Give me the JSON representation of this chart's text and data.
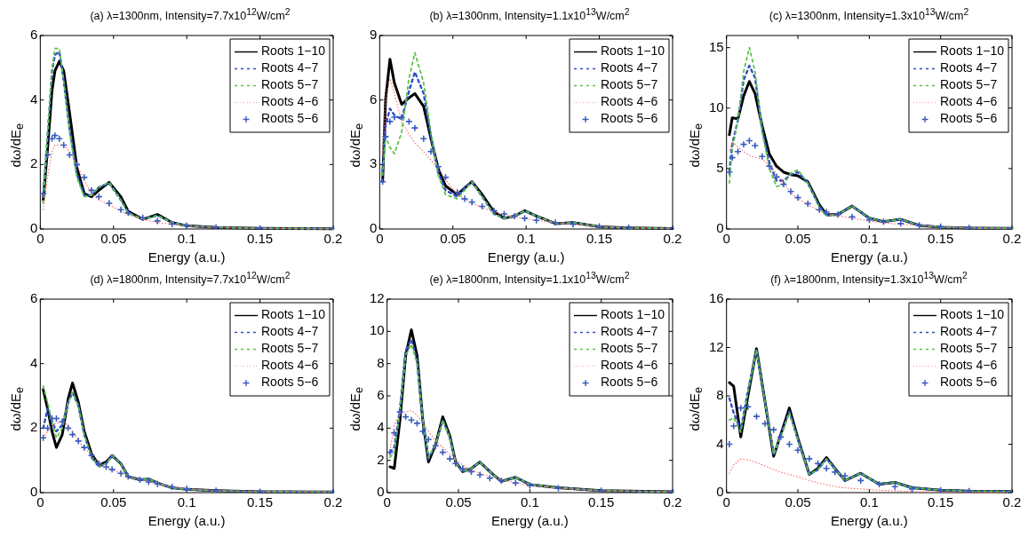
{
  "chart_data": [
    {
      "type": "line",
      "title": "(a) λ=1300nm, Intensity=7.7x10$^{12}$W/cm$^{2}$",
      "xlabel": "Energy (a.u.)",
      "ylabel": "dω/dE$_{e}$",
      "xlim": [
        0,
        0.2
      ],
      "xticks": [
        0,
        0.05,
        0.1,
        0.15,
        0.2
      ],
      "ylim": [
        0,
        6
      ],
      "yticks": [
        0,
        2,
        4,
        6
      ],
      "grid": false,
      "legend": "top right",
      "marker": "none",
      "x": [
        0.002,
        0.005,
        0.008,
        0.01,
        0.013,
        0.016,
        0.02,
        0.025,
        0.03,
        0.035,
        0.04,
        0.047,
        0.055,
        0.06,
        0.07,
        0.08,
        0.09,
        0.1,
        0.12,
        0.15,
        0.2
      ],
      "series": [
        {
          "name": "Roots 1−10",
          "color": "#000000",
          "line_style": "solid",
          "values": [
            0.9,
            2.5,
            4.3,
            4.9,
            5.2,
            4.9,
            3.6,
            1.9,
            1.1,
            1.0,
            1.2,
            1.45,
            1.0,
            0.55,
            0.3,
            0.45,
            0.2,
            0.1,
            0.05,
            0.02,
            0.01
          ]
        },
        {
          "name": "Roots 4−7",
          "color": "#2e4fc4",
          "line_style": "dashed",
          "values": [
            1.0,
            2.9,
            4.9,
            5.4,
            5.5,
            4.6,
            3.1,
            1.7,
            1.05,
            1.05,
            1.3,
            1.42,
            0.9,
            0.5,
            0.3,
            0.42,
            0.2,
            0.1,
            0.05,
            0.02,
            0.01
          ]
        },
        {
          "name": "Roots 5−7",
          "color": "#5cc24a",
          "line_style": "dashed",
          "values": [
            0.8,
            3.0,
            5.0,
            5.6,
            5.6,
            4.6,
            3.0,
            1.6,
            1.0,
            1.05,
            1.3,
            1.45,
            0.9,
            0.5,
            0.3,
            0.42,
            0.2,
            0.1,
            0.05,
            0.02,
            0.01
          ]
        },
        {
          "name": "Roots 4−6",
          "color": "#ff6b6b",
          "line_style": "dotted",
          "values": [
            0.6,
            1.6,
            2.4,
            2.6,
            2.6,
            2.6,
            2.4,
            2.0,
            1.5,
            1.1,
            0.9,
            0.75,
            0.55,
            0.45,
            0.3,
            0.2,
            0.15,
            0.1,
            0.05,
            0.02,
            0.01
          ]
        },
        {
          "name": "Roots 5−6",
          "color": "#3a5cc0",
          "type": "scatter",
          "marker": "cross",
          "values": [
            1.1,
            2.3,
            2.8,
            2.9,
            2.8,
            2.6,
            2.3,
            2.0,
            1.6,
            1.2,
            1.0,
            0.8,
            0.6,
            0.5,
            0.35,
            0.25,
            0.15,
            0.1,
            0.05,
            0.02,
            0.01
          ]
        }
      ]
    },
    {
      "type": "line",
      "title": "(b) λ=1300nm, Intensity=1.1x10$^{13}$W/cm$^{2}$",
      "xlabel": "Energy (a.u.)",
      "ylabel": "dω/dE$_{e}$",
      "xlim": [
        0,
        0.2
      ],
      "xticks": [
        0,
        0.05,
        0.1,
        0.15,
        0.2
      ],
      "ylim": [
        0,
        9
      ],
      "yticks": [
        0,
        3,
        6,
        9
      ],
      "grid": false,
      "legend": "top right",
      "marker": "none",
      "x": [
        0.002,
        0.004,
        0.007,
        0.01,
        0.015,
        0.02,
        0.024,
        0.03,
        0.035,
        0.04,
        0.045,
        0.053,
        0.058,
        0.063,
        0.07,
        0.078,
        0.085,
        0.092,
        0.099,
        0.107,
        0.12,
        0.132,
        0.15,
        0.17,
        0.2
      ],
      "series": [
        {
          "name": "Roots 1−10",
          "color": "#000000",
          "line_style": "solid",
          "values": [
            2.2,
            6.0,
            7.9,
            6.8,
            5.8,
            6.1,
            6.3,
            5.7,
            4.2,
            2.8,
            2.0,
            1.6,
            1.9,
            2.2,
            1.6,
            0.8,
            0.5,
            0.6,
            0.85,
            0.6,
            0.25,
            0.3,
            0.1,
            0.05,
            0.02
          ]
        },
        {
          "name": "Roots 4−7",
          "color": "#2e4fc4",
          "line_style": "dashed",
          "values": [
            2.7,
            4.8,
            5.6,
            5.3,
            5.1,
            6.4,
            7.3,
            6.3,
            4.3,
            2.6,
            1.8,
            1.5,
            1.9,
            2.2,
            1.5,
            0.7,
            0.5,
            0.6,
            0.85,
            0.6,
            0.25,
            0.3,
            0.1,
            0.05,
            0.02
          ]
        },
        {
          "name": "Roots 5−7",
          "color": "#5cc24a",
          "line_style": "dashed",
          "values": [
            2.5,
            4.3,
            3.8,
            3.5,
            4.5,
            7.0,
            8.2,
            6.8,
            4.5,
            2.5,
            1.6,
            1.4,
            1.8,
            2.2,
            1.5,
            0.7,
            0.5,
            0.6,
            0.85,
            0.6,
            0.25,
            0.3,
            0.1,
            0.05,
            0.02
          ]
        },
        {
          "name": "Roots 4−6",
          "color": "#ff6b6b",
          "line_style": "dotted",
          "values": [
            3.5,
            6.0,
            7.0,
            6.3,
            5.0,
            4.4,
            4.0,
            3.6,
            3.2,
            2.8,
            2.3,
            1.6,
            1.4,
            1.2,
            1.0,
            0.8,
            0.65,
            0.55,
            0.5,
            0.4,
            0.3,
            0.22,
            0.12,
            0.06,
            0.02
          ]
        },
        {
          "name": "Roots 5−6",
          "color": "#3a5cc0",
          "type": "scatter",
          "marker": "cross",
          "values": [
            2.2,
            4.3,
            5.0,
            5.2,
            5.2,
            5.0,
            4.7,
            4.2,
            3.6,
            2.9,
            2.4,
            1.7,
            1.4,
            1.25,
            1.05,
            0.85,
            0.7,
            0.6,
            0.5,
            0.4,
            0.3,
            0.22,
            0.12,
            0.06,
            0.02
          ]
        }
      ]
    },
    {
      "type": "line",
      "title": "(c) λ=1300nm, Intensity=1.3x10$^{13}$W/cm$^{2}$",
      "xlabel": "Energy (a.u.)",
      "ylabel": "dω/dE$_{e}$",
      "xlim": [
        0,
        0.2
      ],
      "xticks": [
        0,
        0.05,
        0.1,
        0.15,
        0.2
      ],
      "ylim": [
        0,
        16
      ],
      "yticks": [
        0,
        5,
        10,
        15
      ],
      "grid": false,
      "legend": "top right",
      "marker": "none",
      "x": [
        0.002,
        0.004,
        0.008,
        0.012,
        0.016,
        0.02,
        0.025,
        0.03,
        0.035,
        0.04,
        0.045,
        0.05,
        0.057,
        0.065,
        0.07,
        0.078,
        0.088,
        0.1,
        0.11,
        0.122,
        0.135,
        0.15,
        0.17,
        0.2
      ],
      "series": [
        {
          "name": "Roots 1−10",
          "color": "#000000",
          "line_style": "solid",
          "values": [
            7.8,
            9.2,
            9.1,
            11.0,
            12.2,
            11.2,
            8.5,
            6.2,
            5.2,
            4.7,
            4.5,
            4.4,
            3.9,
            2.0,
            1.2,
            1.2,
            1.9,
            0.9,
            0.6,
            0.8,
            0.3,
            0.15,
            0.08,
            0.05
          ]
        },
        {
          "name": "Roots 4−7",
          "color": "#2e4fc4",
          "line_style": "dashed",
          "values": [
            4.8,
            7.0,
            9.0,
            12.3,
            13.5,
            12.5,
            8.2,
            5.5,
            4.0,
            4.0,
            4.5,
            4.7,
            3.8,
            1.9,
            1.1,
            1.2,
            1.9,
            0.9,
            0.6,
            0.8,
            0.3,
            0.15,
            0.08,
            0.05
          ]
        },
        {
          "name": "Roots 5−7",
          "color": "#5cc24a",
          "line_style": "dashed",
          "values": [
            3.8,
            6.5,
            9.0,
            13.0,
            15.0,
            13.0,
            8.0,
            5.0,
            3.5,
            3.7,
            4.6,
            4.9,
            3.8,
            1.8,
            1.1,
            1.2,
            1.9,
            0.9,
            0.6,
            0.8,
            0.3,
            0.15,
            0.08,
            0.05
          ]
        },
        {
          "name": "Roots 4−6",
          "color": "#ff6b6b",
          "line_style": "dotted",
          "values": [
            6.5,
            7.2,
            6.8,
            6.4,
            6.1,
            5.9,
            5.8,
            5.3,
            4.6,
            3.8,
            3.0,
            2.5,
            2.0,
            1.5,
            1.3,
            1.1,
            0.9,
            0.65,
            0.5,
            0.4,
            0.3,
            0.2,
            0.1,
            0.05
          ]
        },
        {
          "name": "Roots 5−6",
          "color": "#3a5cc0",
          "type": "scatter",
          "marker": "cross",
          "values": [
            4.7,
            5.9,
            6.4,
            7.0,
            7.3,
            6.9,
            6.0,
            5.2,
            4.3,
            3.7,
            3.1,
            2.6,
            2.1,
            1.6,
            1.4,
            1.2,
            1.0,
            0.75,
            0.6,
            0.45,
            0.32,
            0.2,
            0.1,
            0.05
          ]
        }
      ]
    },
    {
      "type": "line",
      "title": "(d) λ=1800nm, Intensity=7.7x10$^{12}$W/cm$^{2}$",
      "xlabel": "Energy (a.u.)",
      "ylabel": "dω/dE$_{e}$",
      "xlim": [
        0,
        0.2
      ],
      "xticks": [
        0,
        0.05,
        0.1,
        0.15,
        0.2
      ],
      "ylim": [
        0,
        6
      ],
      "yticks": [
        0,
        2,
        4,
        6
      ],
      "grid": false,
      "legend": "top right",
      "marker": "none",
      "x": [
        0.002,
        0.005,
        0.008,
        0.011,
        0.015,
        0.019,
        0.022,
        0.026,
        0.03,
        0.035,
        0.04,
        0.045,
        0.049,
        0.055,
        0.06,
        0.068,
        0.074,
        0.08,
        0.09,
        0.1,
        0.12,
        0.15,
        0.2
      ],
      "series": [
        {
          "name": "Roots 1−10",
          "color": "#000000",
          "line_style": "solid",
          "values": [
            3.2,
            2.6,
            1.9,
            1.4,
            1.8,
            2.9,
            3.4,
            2.8,
            1.9,
            1.2,
            0.85,
            0.95,
            1.15,
            0.9,
            0.5,
            0.4,
            0.42,
            0.3,
            0.15,
            0.1,
            0.06,
            0.03,
            0.02
          ]
        },
        {
          "name": "Roots 4−7",
          "color": "#2e4fc4",
          "line_style": "dashed",
          "values": [
            2.0,
            2.6,
            2.2,
            1.9,
            2.1,
            2.8,
            3.1,
            2.7,
            1.8,
            1.1,
            0.8,
            0.9,
            1.15,
            0.9,
            0.5,
            0.4,
            0.42,
            0.3,
            0.15,
            0.1,
            0.06,
            0.03,
            0.02
          ]
        },
        {
          "name": "Roots 5−7",
          "color": "#5cc24a",
          "line_style": "dashed",
          "values": [
            3.3,
            2.8,
            2.2,
            1.7,
            2.0,
            2.8,
            3.1,
            2.7,
            1.8,
            1.1,
            0.8,
            0.9,
            1.15,
            0.9,
            0.5,
            0.4,
            0.42,
            0.3,
            0.15,
            0.1,
            0.06,
            0.03,
            0.02
          ]
        },
        {
          "name": "Roots 4−6",
          "color": "#ff6b6b",
          "line_style": "dotted",
          "values": [
            1.7,
            1.9,
            2.1,
            2.15,
            2.2,
            2.1,
            1.9,
            1.6,
            1.4,
            1.15,
            0.9,
            0.8,
            0.7,
            0.6,
            0.5,
            0.4,
            0.33,
            0.27,
            0.18,
            0.12,
            0.06,
            0.03,
            0.02
          ]
        },
        {
          "name": "Roots 5−6",
          "color": "#3a5cc0",
          "type": "scatter",
          "marker": "cross",
          "values": [
            1.7,
            2.0,
            2.3,
            2.3,
            2.2,
            2.0,
            1.8,
            1.6,
            1.4,
            1.15,
            0.9,
            0.8,
            0.72,
            0.6,
            0.5,
            0.4,
            0.33,
            0.27,
            0.18,
            0.12,
            0.06,
            0.03,
            0.02
          ]
        }
      ]
    },
    {
      "type": "line",
      "title": "(e) λ=1800nm, Intensity=1.1x10$^{13}$W/cm$^{2}$",
      "xlabel": "Energy (a.u.)",
      "ylabel": "dω/dE$_{e}$",
      "xlim": [
        0,
        0.2
      ],
      "xticks": [
        0,
        0.05,
        0.1,
        0.15,
        0.2
      ],
      "ylim": [
        0,
        12
      ],
      "yticks": [
        0,
        2,
        4,
        6,
        8,
        10,
        12
      ],
      "grid": false,
      "legend": "top right",
      "marker": "none",
      "x": [
        0.002,
        0.005,
        0.009,
        0.013,
        0.017,
        0.021,
        0.025,
        0.029,
        0.034,
        0.039,
        0.044,
        0.048,
        0.053,
        0.059,
        0.065,
        0.072,
        0.08,
        0.09,
        0.1,
        0.12,
        0.15,
        0.2
      ],
      "series": [
        {
          "name": "Roots 1−10",
          "color": "#000000",
          "line_style": "solid",
          "values": [
            1.6,
            1.5,
            4.5,
            8.5,
            10.1,
            8.5,
            4.5,
            1.9,
            3.0,
            4.7,
            3.5,
            1.9,
            1.3,
            1.5,
            1.9,
            1.3,
            0.7,
            0.95,
            0.5,
            0.3,
            0.12,
            0.05
          ]
        },
        {
          "name": "Roots 4−7",
          "color": "#2e4fc4",
          "line_style": "dashed",
          "values": [
            2.5,
            2.8,
            5.2,
            8.8,
            9.5,
            8.2,
            4.5,
            2.1,
            3.0,
            4.5,
            3.4,
            1.9,
            1.3,
            1.5,
            1.9,
            1.3,
            0.7,
            0.95,
            0.5,
            0.3,
            0.12,
            0.05
          ]
        },
        {
          "name": "Roots 5−7",
          "color": "#5cc24a",
          "line_style": "dashed",
          "values": [
            2.2,
            2.5,
            5.0,
            8.5,
            9.2,
            8.0,
            4.6,
            2.2,
            3.0,
            4.5,
            3.4,
            1.9,
            1.3,
            1.5,
            1.9,
            1.3,
            0.7,
            0.95,
            0.5,
            0.3,
            0.12,
            0.05
          ]
        },
        {
          "name": "Roots 4−6",
          "color": "#ff6b6b",
          "line_style": "dotted",
          "values": [
            2.6,
            4.2,
            4.9,
            5.0,
            5.1,
            4.8,
            4.3,
            3.8,
            3.2,
            2.8,
            2.4,
            2.1,
            1.7,
            1.4,
            1.2,
            1.0,
            0.8,
            0.6,
            0.45,
            0.28,
            0.12,
            0.05
          ]
        },
        {
          "name": "Roots 5−6",
          "color": "#3a5cc0",
          "type": "scatter",
          "marker": "cross",
          "values": [
            2.5,
            3.7,
            5.0,
            4.7,
            4.5,
            4.3,
            3.8,
            3.3,
            2.9,
            2.5,
            2.1,
            1.8,
            1.5,
            1.3,
            1.1,
            0.9,
            0.75,
            0.6,
            0.45,
            0.28,
            0.12,
            0.05
          ]
        }
      ]
    },
    {
      "type": "line",
      "title": "(f) λ=1800nm, Intensity=1.3x10$^{13}$W/cm$^{2}$",
      "xlabel": "Energy (a.u.)",
      "ylabel": "dω/dE$_{e}$",
      "xlim": [
        0,
        0.2
      ],
      "xticks": [
        0,
        0.05,
        0.1,
        0.15,
        0.2
      ],
      "ylim": [
        0,
        16
      ],
      "yticks": [
        0,
        4,
        8,
        12,
        16
      ],
      "grid": false,
      "legend": "top right",
      "marker": "none",
      "x": [
        0.002,
        0.005,
        0.01,
        0.015,
        0.021,
        0.027,
        0.033,
        0.038,
        0.044,
        0.05,
        0.058,
        0.064,
        0.07,
        0.076,
        0.083,
        0.094,
        0.107,
        0.118,
        0.13,
        0.15,
        0.17,
        0.2
      ],
      "series": [
        {
          "name": "Roots 1−10",
          "color": "#000000",
          "line_style": "solid",
          "values": [
            9.1,
            8.8,
            4.6,
            8.0,
            11.9,
            7.5,
            3.0,
            4.8,
            7.0,
            4.5,
            1.5,
            2.0,
            2.9,
            2.0,
            1.0,
            1.6,
            0.7,
            0.85,
            0.4,
            0.2,
            0.12,
            0.1
          ]
        },
        {
          "name": "Roots 4−7",
          "color": "#2e4fc4",
          "line_style": "dashed",
          "values": [
            7.8,
            6.6,
            5.2,
            8.4,
            11.8,
            7.5,
            3.1,
            4.7,
            6.7,
            4.4,
            1.5,
            1.9,
            2.8,
            2.0,
            1.0,
            1.6,
            0.7,
            0.85,
            0.4,
            0.2,
            0.12,
            0.1
          ]
        },
        {
          "name": "Roots 5−7",
          "color": "#5cc24a",
          "line_style": "dashed",
          "values": [
            6.0,
            6.2,
            5.0,
            8.3,
            11.8,
            7.5,
            3.2,
            4.6,
            6.6,
            4.4,
            1.5,
            1.9,
            2.8,
            2.0,
            1.0,
            1.6,
            0.7,
            0.85,
            0.4,
            0.2,
            0.12,
            0.1
          ]
        },
        {
          "name": "Roots 4−6",
          "color": "#ff6b6b",
          "line_style": "dotted",
          "values": [
            1.6,
            2.3,
            2.8,
            2.7,
            2.5,
            2.2,
            1.9,
            1.7,
            1.5,
            1.3,
            1.0,
            0.8,
            0.65,
            0.5,
            0.4,
            0.3,
            0.2,
            0.15,
            0.1,
            0.05,
            0.03,
            0.02
          ]
        },
        {
          "name": "Roots 5−6",
          "color": "#3a5cc0",
          "type": "scatter",
          "marker": "cross",
          "values": [
            4.0,
            5.5,
            7.0,
            7.1,
            6.3,
            5.7,
            5.2,
            4.6,
            4.0,
            3.5,
            2.8,
            2.4,
            2.0,
            1.7,
            1.4,
            1.0,
            0.7,
            0.5,
            0.3,
            0.2,
            0.12,
            0.1
          ]
        }
      ]
    }
  ]
}
